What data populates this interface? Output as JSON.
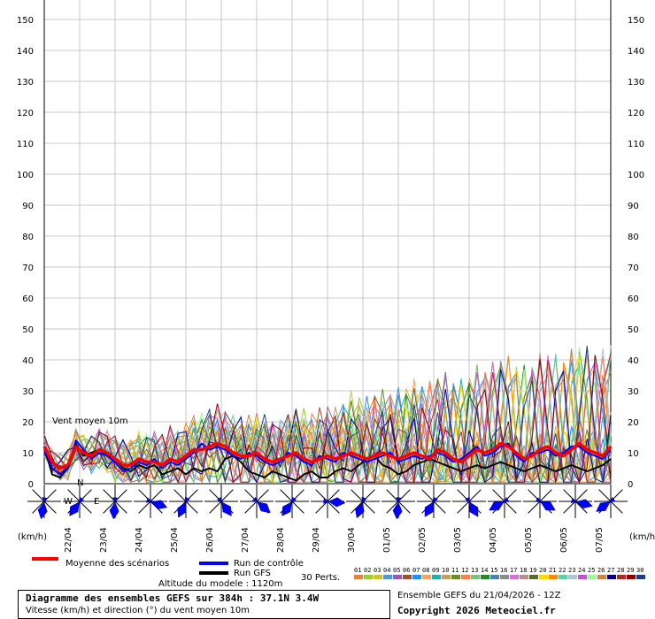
{
  "chart_data": {
    "type": "line",
    "title": "Diagramme des ensembles GEFS sur 384h : 37.1N 3.4W",
    "subtitle": "Vitesse (km/h) et direction (°) du vent moyen 10m",
    "annotation": "Vent moyen 10m",
    "ylabel_left": "(km/h)",
    "ylabel_right": "(km/h)",
    "ylim": [
      0,
      155
    ],
    "yticks": [
      0,
      10,
      20,
      30,
      40,
      50,
      60,
      70,
      80,
      90,
      100,
      110,
      120,
      130,
      140,
      150
    ],
    "grid": true,
    "date_labels": [
      "22/04",
      "23/04",
      "24/04",
      "25/04",
      "26/04",
      "27/04",
      "28/04",
      "29/04",
      "30/04",
      "01/05",
      "02/05",
      "03/05",
      "04/05",
      "05/05",
      "06/05",
      "07/05"
    ],
    "x_hours_start": 0,
    "x_hours_step": 6,
    "mean_series": [
      12,
      7,
      5,
      6,
      12,
      10,
      9,
      11,
      10,
      8,
      6,
      6,
      8,
      7,
      7,
      6,
      8,
      7,
      9,
      11,
      11,
      12,
      13,
      12,
      10,
      9,
      9,
      10,
      8,
      7,
      8,
      9,
      10,
      8,
      7,
      8,
      9,
      8,
      9,
      10,
      9,
      8,
      9,
      10,
      9,
      8,
      9,
      10,
      9,
      8,
      11,
      10,
      8,
      7,
      9,
      11,
      10,
      11,
      13,
      12,
      10,
      8,
      9,
      11,
      12,
      10,
      9,
      11,
      13,
      11,
      10,
      9,
      12
    ],
    "control_series": [
      11,
      5,
      3,
      5,
      14,
      11,
      8,
      10,
      9,
      7,
      4,
      5,
      7,
      6,
      8,
      5,
      7,
      6,
      8,
      10,
      13,
      11,
      12,
      11,
      9,
      8,
      10,
      9,
      7,
      6,
      7,
      10,
      9,
      7,
      6,
      9,
      8,
      7,
      10,
      9,
      8,
      7,
      8,
      9,
      10,
      7,
      8,
      9,
      8,
      9,
      10,
      9,
      7,
      8,
      10,
      12,
      9,
      10,
      12,
      13,
      9,
      7,
      10,
      10,
      11,
      9,
      10,
      12,
      12,
      10,
      9,
      8,
      11
    ],
    "gfs_series": [
      12,
      3,
      2,
      5,
      13,
      9,
      10,
      11,
      9,
      8,
      5,
      4,
      6,
      5,
      6,
      3,
      4,
      5,
      3,
      5,
      4,
      5,
      4,
      8,
      9,
      7,
      4,
      3,
      2,
      4,
      3,
      2,
      1,
      3,
      4,
      2,
      2,
      4,
      5,
      4,
      6,
      8,
      9,
      6,
      5,
      3,
      4,
      6,
      7,
      8,
      7,
      6,
      5,
      4,
      5,
      6,
      5,
      6,
      7,
      6,
      5,
      4,
      5,
      6,
      5,
      4,
      5,
      6,
      5,
      4,
      5,
      6,
      8
    ],
    "legend": [
      {
        "label": "Moyenne des scénarios",
        "color": "#ff0000"
      },
      {
        "label": "Run de contrôle",
        "color": "#0000ff"
      },
      {
        "label": "Run GFS",
        "color": "#000000"
      }
    ],
    "perturbations_label": "30 Perts.",
    "perturbation_ids": [
      "01",
      "02",
      "03",
      "04",
      "05",
      "06",
      "07",
      "08",
      "09",
      "10",
      "11",
      "12",
      "13",
      "14",
      "15",
      "16",
      "17",
      "18",
      "19",
      "20",
      "21",
      "22",
      "23",
      "24",
      "25",
      "26",
      "27",
      "28",
      "29",
      "30"
    ],
    "perturbation_colors": [
      "#e8813a",
      "#9acd32",
      "#d4c22a",
      "#4b9bd8",
      "#9b59b6",
      "#a0522d",
      "#1e90ff",
      "#f4a460",
      "#20b2aa",
      "#c0a060",
      "#6b8e23",
      "#ff7f50",
      "#7fbf7f",
      "#228b22",
      "#4682b4",
      "#8a8a8a",
      "#da70d6",
      "#bc8f8f",
      "#556b2f",
      "#ffd700",
      "#ff8c00",
      "#66cdaa",
      "#b0c4de",
      "#ba55d3",
      "#98fb98",
      "#cd853f",
      "#00008b",
      "#a52a2a",
      "#8b0000",
      "#1c3d8c"
    ],
    "wind_roses": [
      {
        "dir": 190
      },
      {
        "dir": 215
      },
      {
        "dir": 185
      },
      {
        "dir": 110
      },
      {
        "dir": 205
      },
      {
        "dir": 145
      },
      {
        "dir": 130
      },
      {
        "dir": 215
      },
      {
        "dir": 95
      },
      {
        "dir": 200
      },
      {
        "dir": 185
      },
      {
        "dir": 210
      },
      {
        "dir": 150
      },
      {
        "dir": 240
      },
      {
        "dir": 120
      },
      {
        "dir": 105
      },
      {
        "dir": 235
      }
    ]
  },
  "footer": {
    "altitude": "Altitude du modele : 1120m",
    "ensemble": "Ensemble GEFS du 21/04/2026 - 12Z",
    "copyright": "Copyright 2026 Meteociel.fr"
  }
}
